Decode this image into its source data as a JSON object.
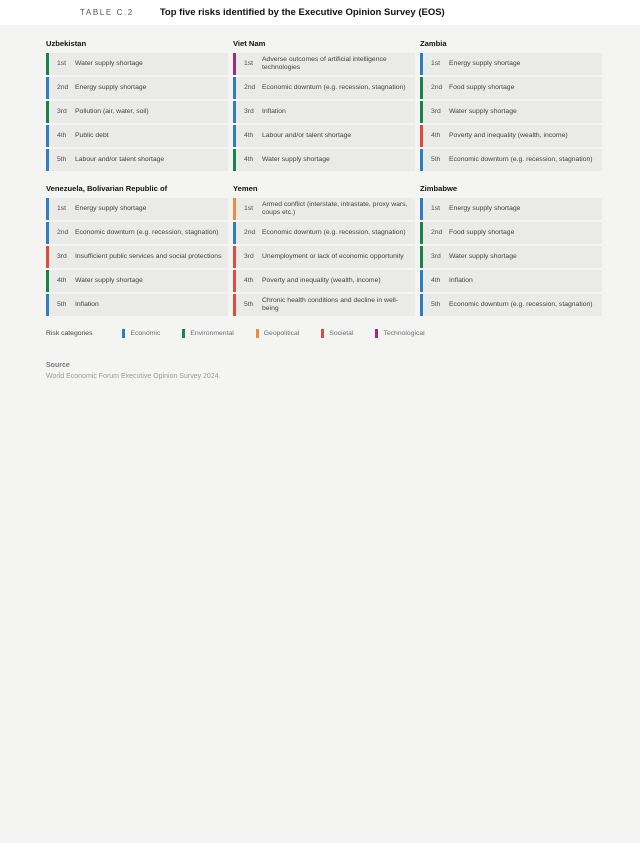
{
  "header": {
    "label": "TABLE C.2",
    "title": "Top five risks identified by the Executive Opinion Survey (EOS)"
  },
  "category_colors": {
    "Economic": "#2e7dc0",
    "Environmental": "#18834b",
    "Geopolitical": "#ee8c3e",
    "Societal": "#e24a3b",
    "Technological": "#9c2d82"
  },
  "countries": [
    {
      "name": "Uzbekistan",
      "risks": [
        {
          "rank": "1st",
          "risk": "Water supply shortage",
          "category": "Environmental"
        },
        {
          "rank": "2nd",
          "risk": "Energy supply shortage",
          "category": "Economic"
        },
        {
          "rank": "3rd",
          "risk": "Pollution (air, water, soil)",
          "category": "Environmental"
        },
        {
          "rank": "4th",
          "risk": "Public debt",
          "category": "Economic"
        },
        {
          "rank": "5th",
          "risk": "Labour and/or talent shortage",
          "category": "Economic"
        }
      ]
    },
    {
      "name": "Viet Nam",
      "risks": [
        {
          "rank": "1st",
          "risk": "Adverse outcomes of artificial intelligence technologies",
          "category": "Technological"
        },
        {
          "rank": "2nd",
          "risk": "Economic downturn (e.g. recession, stagnation)",
          "category": "Economic"
        },
        {
          "rank": "3rd",
          "risk": "Inflation",
          "category": "Economic"
        },
        {
          "rank": "4th",
          "risk": "Labour and/or talent shortage",
          "category": "Economic"
        },
        {
          "rank": "4th",
          "risk": "Water supply shortage",
          "category": "Environmental"
        }
      ]
    },
    {
      "name": "Zambia",
      "risks": [
        {
          "rank": "1st",
          "risk": "Energy supply shortage",
          "category": "Economic"
        },
        {
          "rank": "2nd",
          "risk": "Food supply shortage",
          "category": "Environmental"
        },
        {
          "rank": "3rd",
          "risk": "Water supply shortage",
          "category": "Environmental"
        },
        {
          "rank": "4th",
          "risk": "Poverty and inequality (wealth, income)",
          "category": "Societal"
        },
        {
          "rank": "5th",
          "risk": "Economic downturn (e.g. recession, stagnation)",
          "category": "Economic"
        }
      ]
    },
    {
      "name": "Venezuela, Bolivarian Republic of",
      "risks": [
        {
          "rank": "1st",
          "risk": "Energy supply shortage",
          "category": "Economic"
        },
        {
          "rank": "2nd",
          "risk": "Economic downturn (e.g. recession, stagnation)",
          "category": "Economic"
        },
        {
          "rank": "3rd",
          "risk": "Insufficient public services and social protections",
          "category": "Societal"
        },
        {
          "rank": "4th",
          "risk": "Water supply shortage",
          "category": "Environmental"
        },
        {
          "rank": "5th",
          "risk": "Inflation",
          "category": "Economic"
        }
      ]
    },
    {
      "name": "Yemen",
      "risks": [
        {
          "rank": "1st",
          "risk": "Armed conflict (interstate, intrastate, proxy wars, coups etc.)",
          "category": "Geopolitical"
        },
        {
          "rank": "2nd",
          "risk": "Economic downturn (e.g. recession, stagnation)",
          "category": "Economic"
        },
        {
          "rank": "3rd",
          "risk": "Unemployment or lack of economic opportunity",
          "category": "Societal"
        },
        {
          "rank": "4th",
          "risk": "Poverty and inequality (wealth, income)",
          "category": "Societal"
        },
        {
          "rank": "5th",
          "risk": "Chronic health conditions and decline in well-being",
          "category": "Societal"
        }
      ]
    },
    {
      "name": "Zimbabwe",
      "risks": [
        {
          "rank": "1st",
          "risk": "Energy supply shortage",
          "category": "Economic"
        },
        {
          "rank": "2nd",
          "risk": "Food supply shortage",
          "category": "Environmental"
        },
        {
          "rank": "3rd",
          "risk": "Water supply shortage",
          "category": "Environmental"
        },
        {
          "rank": "4th",
          "risk": "Inflation",
          "category": "Economic"
        },
        {
          "rank": "5th",
          "risk": "Economic downturn (e.g. recession, stagnation)",
          "category": "Economic"
        }
      ]
    }
  ],
  "legend": {
    "label": "Risk categories",
    "items": [
      {
        "name": "Economic",
        "color": "#2e7dc0"
      },
      {
        "name": "Environmental",
        "color": "#18834b"
      },
      {
        "name": "Geopolitical",
        "color": "#ee8c3e"
      },
      {
        "name": "Societal",
        "color": "#e24a3b"
      },
      {
        "name": "Technological",
        "color": "#9c2d82"
      }
    ]
  },
  "source": {
    "label": "Source",
    "text": "World Economic Forum Executive Opinion Survey 2024."
  }
}
